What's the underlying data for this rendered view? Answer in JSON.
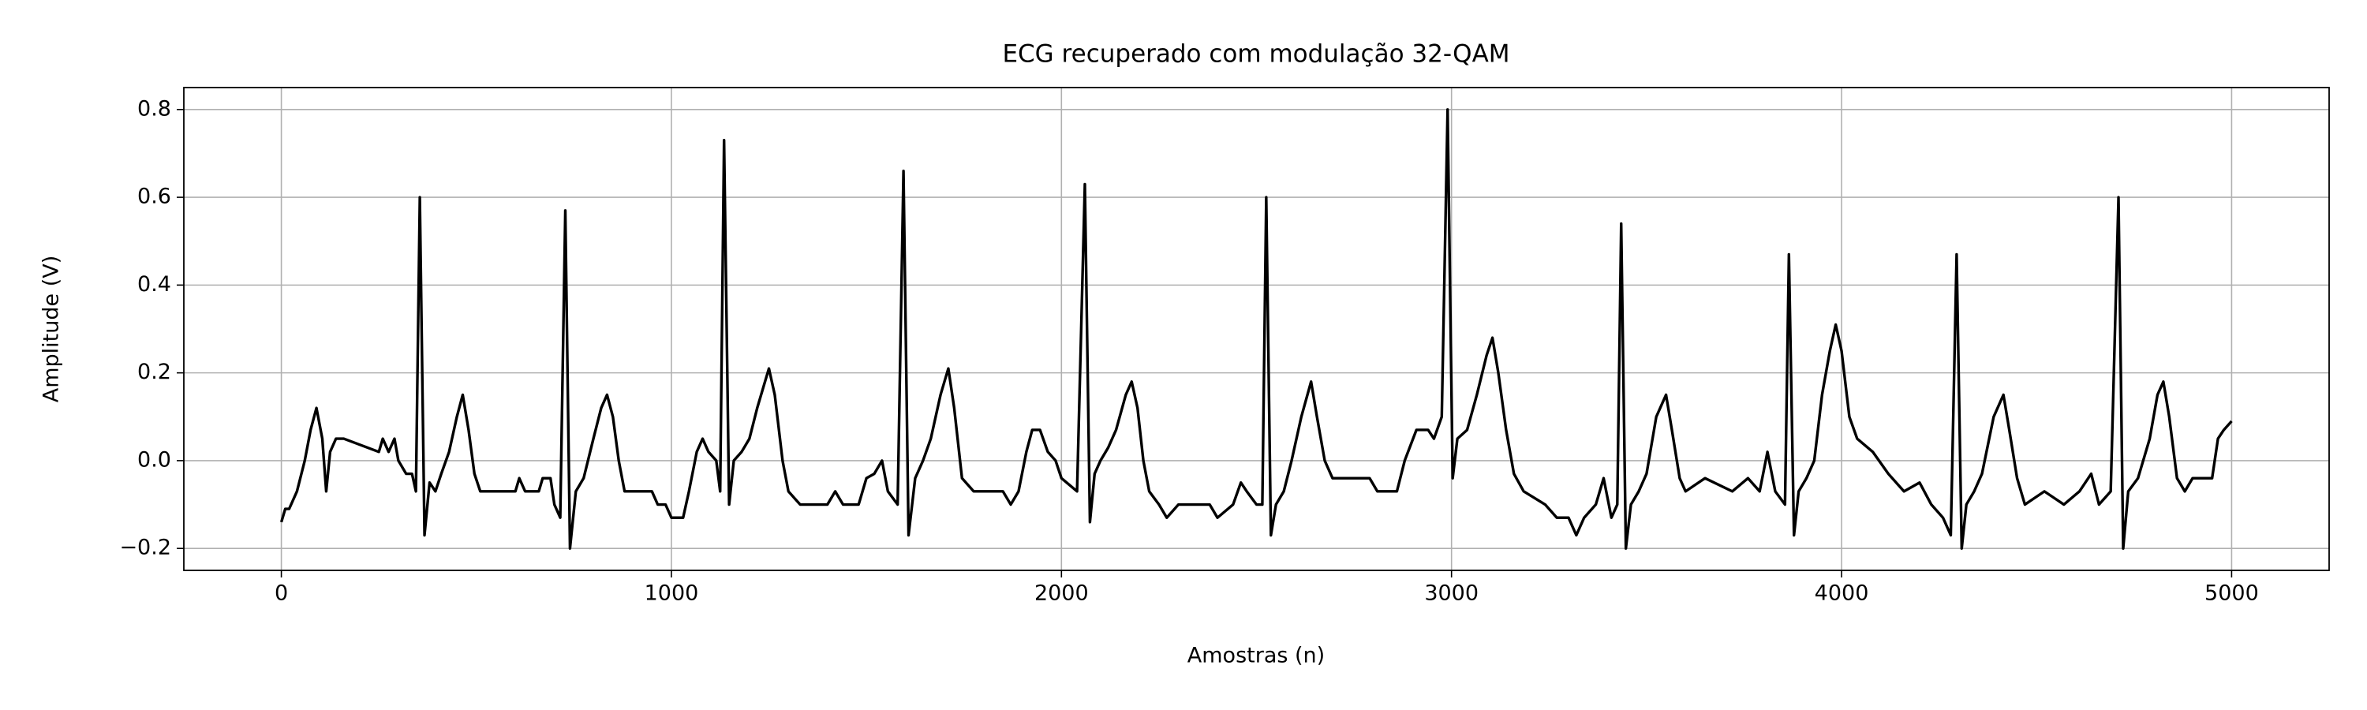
{
  "chart_data": {
    "type": "line",
    "title": "ECG recuperado com modulação 32-QAM",
    "xlabel": "Amostras (n)",
    "ylabel": "Amplitude (V)",
    "xlim": [
      -250,
      5250
    ],
    "ylim": [
      -0.25,
      0.85
    ],
    "xticks": [
      0,
      1000,
      2000,
      3000,
      4000,
      5000
    ],
    "yticks": [
      {
        "value": -0.2,
        "label": "−0.2"
      },
      {
        "value": 0,
        "label": "0.0"
      },
      0.2,
      0.4,
      0.6,
      0.8
    ],
    "grid": true,
    "series": [
      {
        "color": "#000000",
        "x": [
          0,
          10,
          20,
          40,
          60,
          75,
          90,
          105,
          115,
          125,
          140,
          160,
          250,
          260,
          275,
          290,
          300,
          320,
          335,
          345,
          355,
          367,
          380,
          395,
          410,
          430,
          450,
          465,
          480,
          495,
          510,
          600,
          610,
          625,
          660,
          670,
          690,
          700,
          715,
          728,
          740,
          755,
          775,
          800,
          820,
          835,
          850,
          865,
          880,
          950,
          965,
          985,
          1000,
          1030,
          1045,
          1065,
          1080,
          1095,
          1115,
          1125,
          1135,
          1148,
          1160,
          1180,
          1200,
          1220,
          1240,
          1250,
          1265,
          1285,
          1300,
          1330,
          1400,
          1420,
          1440,
          1480,
          1500,
          1520,
          1540,
          1555,
          1580,
          1595,
          1608,
          1625,
          1645,
          1665,
          1690,
          1710,
          1725,
          1745,
          1775,
          1850,
          1870,
          1890,
          1910,
          1925,
          1945,
          1965,
          1985,
          2000,
          2040,
          2060,
          2073,
          2085,
          2100,
          2120,
          2140,
          2165,
          2180,
          2195,
          2210,
          2225,
          2250,
          2270,
          2300,
          2380,
          2400,
          2440,
          2460,
          2475,
          2500,
          2515,
          2525,
          2537,
          2550,
          2570,
          2590,
          2615,
          2640,
          2655,
          2675,
          2695,
          2730,
          2790,
          2810,
          2860,
          2880,
          2910,
          2940,
          2955,
          2975,
          2990,
          3003,
          3015,
          3040,
          3065,
          3090,
          3105,
          3120,
          3140,
          3160,
          3185,
          3240,
          3270,
          3300,
          3320,
          3340,
          3370,
          3390,
          3410,
          3425,
          3435,
          3447,
          3460,
          3480,
          3500,
          3525,
          3550,
          3565,
          3585,
          3600,
          3650,
          3720,
          3760,
          3790,
          3810,
          3830,
          3855,
          3865,
          3878,
          3890,
          3910,
          3930,
          3950,
          3970,
          3985,
          4000,
          4020,
          4040,
          4080,
          4120,
          4160,
          4200,
          4230,
          4260,
          4280,
          4295,
          4308,
          4320,
          4340,
          4360,
          4390,
          4415,
          4430,
          4450,
          4470,
          4520,
          4570,
          4610,
          4640,
          4660,
          4690,
          4710,
          4722,
          4735,
          4760,
          4790,
          4810,
          4825,
          4840,
          4860,
          4880,
          4900,
          4950,
          4965,
          4980,
          5000
        ],
        "values": [
          -0.14,
          -0.11,
          -0.11,
          -0.07,
          0.0,
          0.07,
          0.12,
          0.05,
          -0.07,
          0.02,
          0.05,
          0.05,
          0.02,
          0.05,
          0.02,
          0.05,
          0.0,
          -0.03,
          -0.03,
          -0.07,
          0.6,
          -0.17,
          -0.05,
          -0.07,
          -0.03,
          0.02,
          0.1,
          0.15,
          0.07,
          -0.03,
          -0.07,
          -0.07,
          -0.04,
          -0.07,
          -0.07,
          -0.04,
          -0.04,
          -0.1,
          -0.13,
          0.57,
          -0.2,
          -0.07,
          -0.04,
          0.05,
          0.12,
          0.15,
          0.1,
          0.0,
          -0.07,
          -0.07,
          -0.1,
          -0.1,
          -0.13,
          -0.13,
          -0.07,
          0.02,
          0.05,
          0.02,
          0.0,
          -0.07,
          0.73,
          -0.1,
          0.0,
          0.02,
          0.05,
          0.12,
          0.18,
          0.21,
          0.15,
          0.0,
          -0.07,
          -0.1,
          -0.1,
          -0.07,
          -0.1,
          -0.1,
          -0.04,
          -0.03,
          0.0,
          -0.07,
          -0.1,
          0.66,
          -0.17,
          -0.04,
          0.0,
          0.05,
          0.15,
          0.21,
          0.12,
          -0.04,
          -0.07,
          -0.07,
          -0.1,
          -0.07,
          0.02,
          0.07,
          0.07,
          0.02,
          0.0,
          -0.04,
          -0.07,
          0.63,
          -0.14,
          -0.03,
          0.0,
          0.03,
          0.07,
          0.15,
          0.18,
          0.12,
          0.0,
          -0.07,
          -0.1,
          -0.13,
          -0.1,
          -0.1,
          -0.13,
          -0.1,
          -0.05,
          -0.07,
          -0.1,
          -0.1,
          0.6,
          -0.17,
          -0.1,
          -0.07,
          0.0,
          0.1,
          0.18,
          0.1,
          0.0,
          -0.04,
          -0.04,
          -0.04,
          -0.07,
          -0.07,
          0.0,
          0.07,
          0.07,
          0.05,
          0.1,
          0.8,
          -0.04,
          0.05,
          0.07,
          0.15,
          0.24,
          0.28,
          0.2,
          0.07,
          -0.03,
          -0.07,
          -0.1,
          -0.13,
          -0.13,
          -0.17,
          -0.13,
          -0.1,
          -0.04,
          -0.13,
          -0.1,
          0.54,
          -0.2,
          -0.1,
          -0.07,
          -0.03,
          0.1,
          0.15,
          0.07,
          -0.04,
          -0.07,
          -0.04,
          -0.07,
          -0.04,
          -0.07,
          0.02,
          -0.07,
          -0.1,
          0.47,
          -0.17,
          -0.07,
          -0.04,
          0.0,
          0.15,
          0.25,
          0.31,
          0.25,
          0.1,
          0.05,
          0.02,
          -0.03,
          -0.07,
          -0.05,
          -0.1,
          -0.13,
          -0.17,
          0.47,
          -0.2,
          -0.1,
          -0.07,
          -0.03,
          0.1,
          0.15,
          0.07,
          -0.04,
          -0.1,
          -0.07,
          -0.1,
          -0.07,
          -0.03,
          -0.1,
          -0.07,
          0.6,
          -0.2,
          -0.07,
          -0.04,
          0.05,
          0.15,
          0.18,
          0.1,
          -0.04,
          -0.07,
          -0.04,
          -0.04,
          0.05,
          0.07,
          0.09
        ]
      }
    ]
  }
}
